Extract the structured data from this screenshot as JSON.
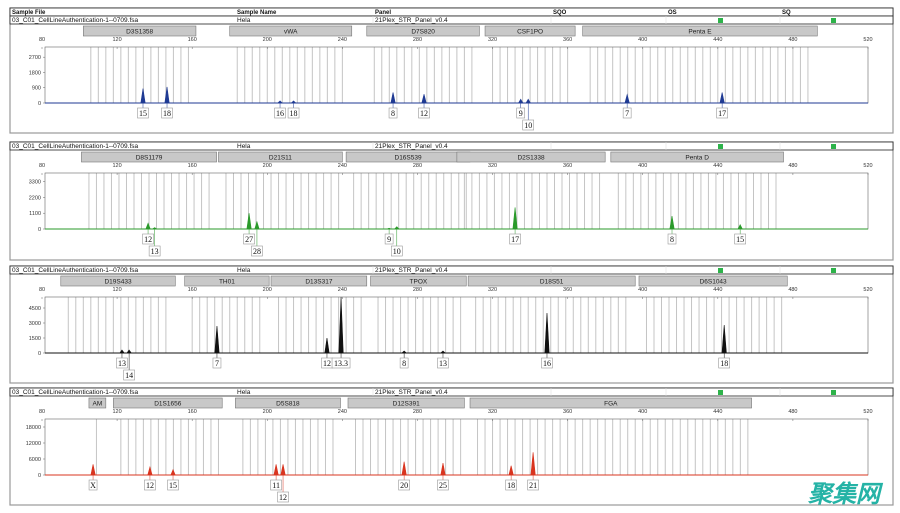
{
  "header": {
    "columns": [
      "Sample File",
      "Sample Name",
      "Panel",
      "SQO",
      "OS",
      "SQ"
    ]
  },
  "sample": {
    "file": "03_C01_CellLineAuthentication-1--0709.fsa",
    "name": "Hela",
    "panel": "21Plex_STR_Panel_v0.4"
  },
  "quality_flags": {
    "OS": "pass",
    "SQ": "pass",
    "color": "#2db34a"
  },
  "watermark": "聚集网",
  "chart_data": [
    {
      "type": "line",
      "dye_color": "#1f3a93",
      "xlim": [
        80,
        520
      ],
      "x_ticks": [
        80,
        120,
        160,
        200,
        240,
        280,
        320,
        360,
        400,
        440,
        480,
        520
      ],
      "y_ticks": [
        0,
        900,
        1800,
        2700
      ],
      "ylim": [
        0,
        3300
      ],
      "markers": [
        {
          "name": "D3S1358",
          "range": [
            102,
            162
          ]
        },
        {
          "name": "vWA",
          "range": [
            180,
            245
          ]
        },
        {
          "name": "D7S820",
          "range": [
            253,
            313
          ]
        },
        {
          "name": "CSF1PO",
          "range": [
            316,
            364
          ]
        },
        {
          "name": "Penta E",
          "range": [
            368,
            493
          ]
        }
      ],
      "peaks": [
        {
          "allele": "15",
          "size": 133.8,
          "height": 850
        },
        {
          "allele": "18",
          "size": 146.6,
          "height": 950
        },
        {
          "allele": "16",
          "size": 206.8,
          "height": 120
        },
        {
          "allele": "18",
          "size": 214.0,
          "height": 120
        },
        {
          "allele": "8",
          "size": 267.0,
          "height": 620
        },
        {
          "allele": "12",
          "size": 283.5,
          "height": 520
        },
        {
          "allele": "9",
          "size": 335.0,
          "height": 220
        },
        {
          "allele": "10",
          "size": 339.0,
          "height": 220
        },
        {
          "allele": "7",
          "size": 391.7,
          "height": 500
        },
        {
          "allele": "17",
          "size": 442.3,
          "height": 620
        }
      ]
    },
    {
      "type": "line",
      "dye_color": "#2a9a2a",
      "xlim": [
        80,
        520
      ],
      "x_ticks": [
        80,
        120,
        160,
        200,
        240,
        280,
        320,
        360,
        400,
        440,
        480,
        520
      ],
      "y_ticks": [
        0,
        1100,
        2200,
        3300
      ],
      "ylim": [
        0,
        3900
      ],
      "markers": [
        {
          "name": "D8S1179",
          "range": [
            101,
            173
          ]
        },
        {
          "name": "D21S11",
          "range": [
            174,
            240
          ]
        },
        {
          "name": "D16S539",
          "range": [
            242,
            308
          ]
        },
        {
          "name": "D2S1338",
          "range": [
            301,
            380
          ]
        },
        {
          "name": "Penta D",
          "range": [
            383,
            475
          ]
        }
      ],
      "peaks": [
        {
          "allele": "12",
          "size": 136.5,
          "height": 400
        },
        {
          "allele": "13",
          "size": 140.0,
          "height": 100
        },
        {
          "allele": "27",
          "size": 190.3,
          "height": 1100
        },
        {
          "allele": "28",
          "size": 194.5,
          "height": 500
        },
        {
          "allele": "9",
          "size": 264.9,
          "height": 60
        },
        {
          "allele": "10",
          "size": 269.0,
          "height": 160
        },
        {
          "allele": "17",
          "size": 332.0,
          "height": 1500
        },
        {
          "allele": "8",
          "size": 415.6,
          "height": 900
        },
        {
          "allele": "15",
          "size": 451.9,
          "height": 300
        }
      ]
    },
    {
      "type": "line",
      "dye_color": "#111111",
      "xlim": [
        80,
        520
      ],
      "x_ticks": [
        80,
        120,
        160,
        200,
        240,
        280,
        320,
        360,
        400,
        440,
        480,
        520
      ],
      "y_ticks": [
        0,
        1500,
        3000,
        4500
      ],
      "ylim": [
        0,
        5600
      ],
      "markers": [
        {
          "name": "D19S433",
          "range": [
            90,
            151
          ]
        },
        {
          "name": "TH01",
          "range": [
            156,
            201
          ]
        },
        {
          "name": "D13S317",
          "range": [
            202,
            253
          ]
        },
        {
          "name": "TPOX",
          "range": [
            255,
            306
          ]
        },
        {
          "name": "D18S51",
          "range": [
            307,
            396
          ]
        },
        {
          "name": "D6S1043",
          "range": [
            398,
            477
          ]
        }
      ],
      "peaks": [
        {
          "allele": "13",
          "size": 122.6,
          "height": 300
        },
        {
          "allele": "14",
          "size": 126.4,
          "height": 300
        },
        {
          "allele": "7",
          "size": 173.2,
          "height": 2700
        },
        {
          "allele": "12",
          "size": 231.8,
          "height": 1500
        },
        {
          "allele": "13.3",
          "size": 239.3,
          "height": 5600
        },
        {
          "allele": "8",
          "size": 272.9,
          "height": 200
        },
        {
          "allele": "13",
          "size": 293.6,
          "height": 200
        },
        {
          "allele": "16",
          "size": 349.0,
          "height": 4000
        },
        {
          "allele": "18",
          "size": 443.4,
          "height": 2800
        }
      ]
    },
    {
      "type": "line",
      "dye_color": "#d9341f",
      "xlim": [
        80,
        520
      ],
      "x_ticks": [
        80,
        120,
        160,
        200,
        240,
        280,
        320,
        360,
        400,
        440,
        480,
        520
      ],
      "y_ticks": [
        0,
        6000,
        12000,
        18000
      ],
      "ylim": [
        0,
        21000
      ],
      "markers": [
        {
          "name": "AM",
          "range": [
            105,
            114
          ]
        },
        {
          "name": "D1S1656",
          "range": [
            118,
            176
          ]
        },
        {
          "name": "D5S818",
          "range": [
            183,
            239
          ]
        },
        {
          "name": "D12S391",
          "range": [
            243,
            305
          ]
        },
        {
          "name": "FGA",
          "range": [
            308,
            458
          ]
        }
      ],
      "peaks": [
        {
          "allele": "X",
          "size": 107.2,
          "height": 4000
        },
        {
          "allele": "12",
          "size": 137.5,
          "height": 3000
        },
        {
          "allele": "15",
          "size": 149.8,
          "height": 2000
        },
        {
          "allele": "11",
          "size": 204.7,
          "height": 4000
        },
        {
          "allele": "12",
          "size": 208.4,
          "height": 4000
        },
        {
          "allele": "20",
          "size": 272.9,
          "height": 5000
        },
        {
          "allele": "25",
          "size": 293.6,
          "height": 4500
        },
        {
          "allele": "18",
          "size": 329.9,
          "height": 3500
        },
        {
          "allele": "21",
          "size": 341.6,
          "height": 8500
        }
      ]
    }
  ]
}
